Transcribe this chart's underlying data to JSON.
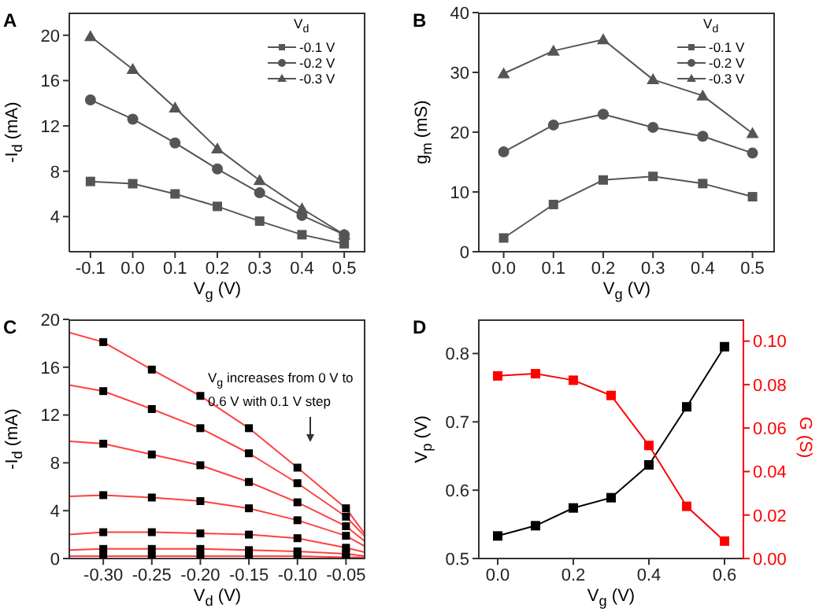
{
  "chart_data": [
    {
      "type": "line",
      "title": "A",
      "xlabel": "V$_{g}$ (V)",
      "ylabel": "-I$_{d}$ (mA)",
      "legend_title": "V$_{d}$",
      "legend": "top right",
      "x": [
        -0.1,
        0.0,
        0.1,
        0.2,
        0.3,
        0.4,
        0.5
      ],
      "xlim": [
        -0.15,
        0.55
      ],
      "xticks": [
        -0.1,
        {
          "value": 0.0,
          "label": "0.0"
        },
        0.1,
        0.2,
        0.3,
        0.4,
        0.5
      ],
      "ylim": [
        0.9,
        22
      ],
      "yticks": [
        4,
        8,
        12,
        16,
        20
      ],
      "series": [
        {
          "name": "-0.1 V",
          "color": "#555555",
          "marker": "square",
          "values": [
            7.1,
            6.9,
            6.0,
            4.9,
            3.6,
            2.4,
            1.6
          ]
        },
        {
          "name": "-0.2 V",
          "color": "#555555",
          "marker": "circle",
          "values": [
            14.3,
            12.6,
            10.5,
            8.2,
            6.1,
            4.1,
            2.4
          ]
        },
        {
          "name": "-0.3 V",
          "color": "#555555",
          "marker": "triangle",
          "values": [
            19.9,
            17.0,
            13.6,
            10.0,
            7.2,
            4.7,
            2.4
          ]
        }
      ]
    },
    {
      "type": "line",
      "title": "B",
      "xlabel": "V$_{g}$ (V)",
      "ylabel": "g$_{m}$ (mS)",
      "legend_title": "V$_{d}$",
      "legend": "top right",
      "x": [
        0.0,
        0.1,
        0.2,
        0.3,
        0.4,
        0.5
      ],
      "xlim": [
        -0.05,
        0.545
      ],
      "xticks": [
        {
          "value": 0.0,
          "label": "0.0"
        },
        0.1,
        0.2,
        0.3,
        0.4,
        0.5
      ],
      "ylim": [
        0,
        40
      ],
      "yticks": [
        0,
        10,
        20,
        30,
        40
      ],
      "series": [
        {
          "name": "-0.1 V",
          "color": "#555555",
          "marker": "square",
          "values": [
            2.3,
            7.9,
            12.0,
            12.6,
            11.4,
            9.2
          ]
        },
        {
          "name": "-0.2 V",
          "color": "#555555",
          "marker": "circle",
          "values": [
            16.7,
            21.2,
            23.0,
            20.8,
            19.3,
            16.5
          ]
        },
        {
          "name": "-0.3 V",
          "color": "#555555",
          "marker": "triangle",
          "values": [
            29.8,
            33.6,
            35.5,
            28.8,
            26.1,
            19.8
          ]
        }
      ]
    },
    {
      "type": "line",
      "title": "C",
      "xlabel": "V$_{d}$ (V)",
      "ylabel": "-I$_{d}$ (mA)",
      "annotations": [
        "V$_{g}$ increases from 0 V to 0.6 V with 0.1 V step"
      ],
      "xlim": [
        -0.335,
        -0.03
      ],
      "xticks": [
        {
          "value": -0.3,
          "label": "-0.30"
        },
        -0.25,
        {
          "value": -0.2,
          "label": "-0.20"
        },
        -0.15,
        {
          "value": -0.1,
          "label": "-0.10"
        },
        -0.05
      ],
      "ylim": [
        0,
        20
      ],
      "yticks": [
        0,
        4,
        8,
        12,
        16,
        20
      ],
      "series": [
        {
          "type": "line",
          "color": "#ff4040",
          "marker": "none",
          "x": [
            -0.335,
            -0.3,
            -0.25,
            -0.2,
            -0.15,
            -0.1,
            -0.05,
            -0.03
          ],
          "values": [
            18.9,
            18.1,
            15.8,
            13.6,
            10.9,
            7.6,
            4.2,
            2.0
          ]
        },
        {
          "type": "line",
          "color": "#ff4040",
          "marker": "none",
          "x": [
            -0.335,
            -0.3,
            -0.25,
            -0.2,
            -0.15,
            -0.1,
            -0.05,
            -0.03
          ],
          "values": [
            14.5,
            14.0,
            12.5,
            10.9,
            8.8,
            6.3,
            3.5,
            1.8
          ]
        },
        {
          "type": "line",
          "color": "#ff4040",
          "marker": "none",
          "x": [
            -0.335,
            -0.3,
            -0.25,
            -0.2,
            -0.15,
            -0.1,
            -0.05,
            -0.03
          ],
          "values": [
            9.8,
            9.6,
            8.7,
            7.8,
            6.4,
            4.7,
            2.7,
            1.4
          ]
        },
        {
          "type": "line",
          "color": "#ff4040",
          "marker": "none",
          "x": [
            -0.335,
            -0.3,
            -0.25,
            -0.2,
            -0.15,
            -0.1,
            -0.05,
            -0.03
          ],
          "values": [
            5.2,
            5.3,
            5.1,
            4.8,
            4.2,
            3.2,
            1.9,
            1.0
          ]
        },
        {
          "type": "line",
          "color": "#ff4040",
          "marker": "none",
          "x": [
            -0.335,
            -0.3,
            -0.25,
            -0.2,
            -0.15,
            -0.1,
            -0.05,
            -0.03
          ],
          "values": [
            2.0,
            2.2,
            2.2,
            2.1,
            2.0,
            1.7,
            0.9,
            0.5
          ]
        },
        {
          "type": "line",
          "color": "#ff4040",
          "marker": "none",
          "x": [
            -0.335,
            -0.3,
            -0.25,
            -0.2,
            -0.15,
            -0.1,
            -0.05,
            -0.03
          ],
          "values": [
            0.7,
            0.8,
            0.8,
            0.8,
            0.7,
            0.6,
            0.4,
            0.2
          ]
        },
        {
          "type": "line",
          "color": "#ff4040",
          "marker": "none",
          "x": [
            -0.335,
            -0.3,
            -0.25,
            -0.2,
            -0.15,
            -0.1,
            -0.05,
            -0.03
          ],
          "values": [
            0.2,
            0.2,
            0.2,
            0.2,
            0.2,
            0.2,
            0.1,
            0.1
          ]
        },
        {
          "type": "scatter",
          "color": "#000000",
          "marker": "square",
          "x": [
            -0.3,
            -0.25,
            -0.2,
            -0.15,
            -0.1,
            -0.05
          ],
          "values": [
            18.1,
            15.8,
            13.6,
            10.9,
            7.6,
            4.2
          ]
        },
        {
          "type": "scatter",
          "color": "#000000",
          "marker": "square",
          "x": [
            -0.3,
            -0.25,
            -0.2,
            -0.15,
            -0.1,
            -0.05
          ],
          "values": [
            14.0,
            12.5,
            10.9,
            8.8,
            6.3,
            3.5
          ]
        },
        {
          "type": "scatter",
          "color": "#000000",
          "marker": "square",
          "x": [
            -0.3,
            -0.25,
            -0.2,
            -0.15,
            -0.1,
            -0.05
          ],
          "values": [
            9.6,
            8.7,
            7.8,
            6.4,
            4.7,
            2.7
          ]
        },
        {
          "type": "scatter",
          "color": "#000000",
          "marker": "square",
          "x": [
            -0.3,
            -0.25,
            -0.2,
            -0.15,
            -0.1,
            -0.05
          ],
          "values": [
            5.3,
            5.1,
            4.8,
            4.2,
            3.2,
            1.9
          ]
        },
        {
          "type": "scatter",
          "color": "#000000",
          "marker": "square",
          "x": [
            -0.3,
            -0.25,
            -0.2,
            -0.15,
            -0.1,
            -0.05
          ],
          "values": [
            2.2,
            2.2,
            2.1,
            2.0,
            1.7,
            0.9
          ]
        },
        {
          "type": "scatter",
          "color": "#000000",
          "marker": "square",
          "x": [
            -0.3,
            -0.25,
            -0.2,
            -0.15,
            -0.1,
            -0.05
          ],
          "values": [
            0.8,
            0.8,
            0.8,
            0.7,
            0.6,
            0.4
          ]
        },
        {
          "type": "scatter",
          "color": "#000000",
          "marker": "square",
          "x": [
            -0.3,
            -0.25,
            -0.2,
            -0.15,
            -0.1,
            -0.05
          ],
          "values": [
            0.2,
            0.2,
            0.2,
            0.2,
            0.2,
            0.1
          ]
        }
      ]
    },
    {
      "type": "line",
      "title": "D",
      "xlabel": "V$_{g}$ (V)",
      "ylabel": "V$_{p}$ (V)",
      "y2label": "G (S)",
      "x": [
        0.0,
        0.1,
        0.2,
        0.3,
        0.4,
        0.5,
        0.6
      ],
      "xlim": [
        -0.05,
        0.65
      ],
      "xticks": [
        {
          "value": 0.0,
          "label": "0.0"
        },
        0.2,
        0.4,
        0.6
      ],
      "ylim": [
        0.5,
        0.85
      ],
      "yticks": [
        0.5,
        0.6,
        0.7,
        0.8
      ],
      "y2lim": [
        0,
        0.11
      ],
      "y2ticks": [
        {
          "value": 0,
          "label": "0.00"
        },
        0.02,
        0.04,
        0.06,
        0.08,
        {
          "value": 0.1,
          "label": "0.10"
        }
      ],
      "series": [
        {
          "color": "#000000",
          "marker": "square",
          "values": [
            0.533,
            0.548,
            0.574,
            0.589,
            0.637,
            0.722,
            0.81
          ]
        },
        {
          "color": "#ff0000",
          "marker": "square",
          "axis": "y2",
          "values": [
            0.084,
            0.085,
            0.082,
            0.075,
            0.052,
            0.024,
            0.008
          ]
        }
      ]
    }
  ]
}
